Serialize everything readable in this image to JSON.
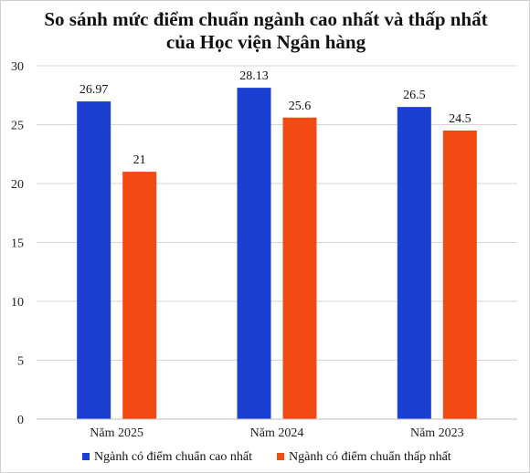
{
  "chart_data": {
    "type": "bar",
    "title_line1": "So sánh mức điểm chuẩn ngành cao nhất và thấp nhất",
    "title_line2": "của Học viện Ngân hàng",
    "categories": [
      "Năm 2025",
      "Năm 2024",
      "Năm 2023"
    ],
    "series": [
      {
        "name": "Ngành có điểm chuẩn cao nhất",
        "values": [
          26.97,
          28.13,
          26.5
        ],
        "labels": [
          "26.97",
          "28.13",
          "26.5"
        ],
        "color": "#1b3fd1"
      },
      {
        "name": "Ngành có điểm chuẩn thấp nhất",
        "values": [
          21,
          25.6,
          24.5
        ],
        "labels": [
          "21",
          "25.6",
          "24.5"
        ],
        "color": "#f24a12"
      }
    ],
    "ylim": [
      0,
      30
    ],
    "yticks": [
      "0",
      "5",
      "10",
      "15",
      "20",
      "25",
      "30"
    ],
    "grid": true,
    "legend_position": "bottom"
  }
}
